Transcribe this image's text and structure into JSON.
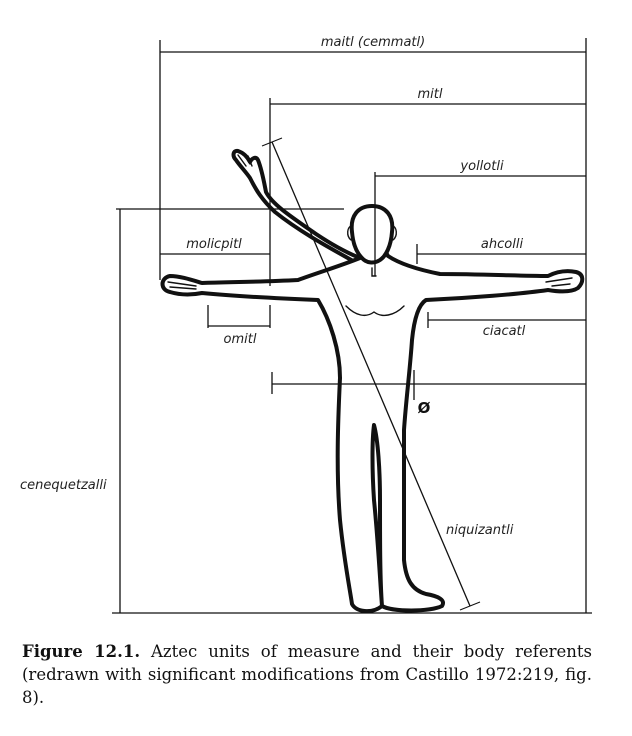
{
  "figure": {
    "units": {
      "maitl": "maitl (cemmatl)",
      "mitl": "mitl",
      "yollotli": "yollotli",
      "molicpitl": "molicpitl",
      "ahcolli": "ahcolli",
      "omitl": "omitl",
      "ciacatl": "ciacatl",
      "cenequetzalli": "cenequetzalli",
      "niquizantli": "niquizantli",
      "null_symbol": "Ø"
    }
  },
  "caption": {
    "label": "Figure 12.1.",
    "text": " Aztec units of measure and their body referents (redrawn with significant modifications from Castillo 1972:219, fig. 8)."
  }
}
